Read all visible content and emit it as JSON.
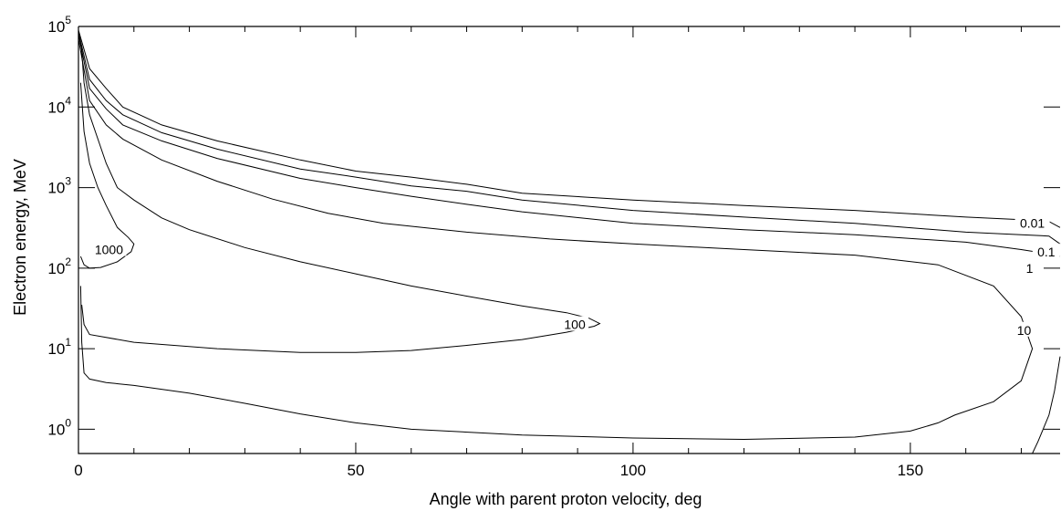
{
  "chart_data": {
    "type": "contour",
    "xlabel": "Angle with parent proton velocity, deg",
    "ylabel": "Electron energy, MeV",
    "xlim": [
      0,
      177
    ],
    "ylim": [
      0.5,
      100000
    ],
    "y_scale": "log",
    "x_ticks": [
      0,
      50,
      100,
      150
    ],
    "y_ticks": [
      {
        "base": "10",
        "exp": "0",
        "value": 1
      },
      {
        "base": "10",
        "exp": "1",
        "value": 10
      },
      {
        "base": "10",
        "exp": "2",
        "value": 100
      },
      {
        "base": "10",
        "exp": "3",
        "value": 1000
      },
      {
        "base": "10",
        "exp": "4",
        "value": 10000
      },
      {
        "base": "10",
        "exp": "5",
        "value": 100000
      }
    ],
    "levels": [
      {
        "label": "0.01",
        "points": [
          [
            0,
            90000
          ],
          [
            2,
            30000
          ],
          [
            5,
            17000
          ],
          [
            8,
            10000
          ],
          [
            15,
            6000
          ],
          [
            25,
            3800
          ],
          [
            40,
            2200
          ],
          [
            50,
            1600
          ],
          [
            60,
            1350
          ],
          [
            70,
            1100
          ],
          [
            80,
            850
          ],
          [
            100,
            700
          ],
          [
            120,
            600
          ],
          [
            140,
            520
          ],
          [
            160,
            430
          ],
          [
            170,
            400
          ],
          [
            175,
            380
          ],
          [
            177,
            320
          ]
        ]
      },
      {
        "label": "0.1",
        "points": [
          [
            0,
            85000
          ],
          [
            2,
            22000
          ],
          [
            5,
            12000
          ],
          [
            8,
            8000
          ],
          [
            15,
            4800
          ],
          [
            25,
            3000
          ],
          [
            40,
            1700
          ],
          [
            50,
            1350
          ],
          [
            60,
            1050
          ],
          [
            70,
            900
          ],
          [
            80,
            700
          ],
          [
            100,
            520
          ],
          [
            120,
            430
          ],
          [
            140,
            360
          ],
          [
            160,
            280
          ],
          [
            170,
            260
          ],
          [
            175,
            250
          ],
          [
            177,
            200
          ]
        ]
      },
      {
        "label": "1",
        "points": [
          [
            0,
            80000
          ],
          [
            2,
            17000
          ],
          [
            5,
            9500
          ],
          [
            8,
            6000
          ],
          [
            15,
            3800
          ],
          [
            25,
            2300
          ],
          [
            40,
            1300
          ],
          [
            50,
            1000
          ],
          [
            60,
            780
          ],
          [
            70,
            620
          ],
          [
            80,
            500
          ],
          [
            100,
            360
          ],
          [
            120,
            300
          ],
          [
            140,
            260
          ],
          [
            160,
            210
          ],
          [
            170,
            170
          ],
          [
            175,
            150
          ],
          [
            177,
            140
          ]
        ]
      },
      {
        "label": "10",
        "points": [
          [
            0,
            70000
          ],
          [
            2,
            12000
          ],
          [
            5,
            6000
          ],
          [
            8,
            4000
          ],
          [
            15,
            2200
          ],
          [
            25,
            1200
          ],
          [
            35,
            720
          ],
          [
            45,
            480
          ],
          [
            55,
            360
          ],
          [
            70,
            280
          ],
          [
            85,
            230
          ],
          [
            100,
            200
          ],
          [
            120,
            170
          ],
          [
            140,
            145
          ],
          [
            155,
            110
          ],
          [
            165,
            60
          ],
          [
            170,
            25
          ],
          [
            172,
            10
          ],
          [
            170,
            4
          ],
          [
            165,
            2.2
          ],
          [
            158,
            1.5
          ],
          [
            155,
            1.2
          ],
          [
            150,
            0.95
          ],
          [
            140,
            0.8
          ],
          [
            120,
            0.75
          ],
          [
            100,
            0.78
          ],
          [
            80,
            0.85
          ],
          [
            60,
            1.0
          ],
          [
            50,
            1.2
          ],
          [
            40,
            1.55
          ],
          [
            30,
            2.1
          ],
          [
            20,
            2.8
          ],
          [
            10,
            3.5
          ],
          [
            5,
            3.8
          ],
          [
            2,
            4.2
          ],
          [
            1,
            5
          ],
          [
            0.6,
            12
          ],
          [
            0.4,
            60
          ]
        ]
      },
      {
        "label": "100",
        "points": [
          [
            0.6,
            35
          ],
          [
            1,
            20
          ],
          [
            2,
            15
          ],
          [
            10,
            12
          ],
          [
            25,
            10
          ],
          [
            40,
            9
          ],
          [
            50,
            9
          ],
          [
            60,
            9.5
          ],
          [
            70,
            11
          ],
          [
            80,
            13
          ],
          [
            88,
            16
          ],
          [
            93,
            19
          ],
          [
            94,
            20.5
          ],
          [
            92,
            24
          ],
          [
            88,
            28
          ],
          [
            80,
            34
          ],
          [
            70,
            45
          ],
          [
            60,
            60
          ],
          [
            50,
            85
          ],
          [
            40,
            120
          ],
          [
            30,
            180
          ],
          [
            20,
            300
          ],
          [
            15,
            420
          ],
          [
            10,
            700
          ],
          [
            7,
            1000
          ],
          [
            5,
            2000
          ],
          [
            3.5,
            4000
          ],
          [
            2,
            8000
          ],
          [
            1,
            20000
          ],
          [
            0.5,
            60000
          ]
        ]
      },
      {
        "label": "1000",
        "points": [
          [
            0.4,
            140
          ],
          [
            1,
            110
          ],
          [
            2,
            100
          ],
          [
            4,
            102
          ],
          [
            7,
            120
          ],
          [
            9.5,
            160
          ],
          [
            10,
            200
          ],
          [
            9,
            240
          ],
          [
            7,
            320
          ],
          [
            5,
            600
          ],
          [
            3.5,
            1000
          ],
          [
            2,
            2000
          ],
          [
            1,
            5000
          ],
          [
            0.4,
            20000
          ]
        ]
      },
      {
        "label": "",
        "points": [
          [
            177,
            8
          ],
          [
            176,
            3
          ],
          [
            175,
            1.5
          ],
          [
            173,
            0.7
          ],
          [
            172,
            0.5
          ]
        ]
      }
    ],
    "contour_labels": [
      {
        "text": "0.01",
        "x": 172,
        "y": 360
      },
      {
        "text": "0.1",
        "x": 174.5,
        "y": 160
      },
      {
        "text": "1",
        "x": 171.5,
        "y": 100
      },
      {
        "text": "10",
        "x": 170.5,
        "y": 17
      },
      {
        "text": "100",
        "x": 89.5,
        "y": 20
      },
      {
        "text": "1000",
        "x": 5.5,
        "y": 170
      }
    ]
  }
}
